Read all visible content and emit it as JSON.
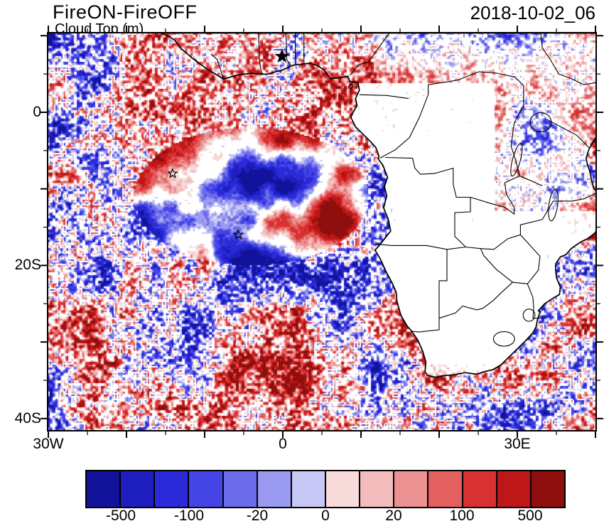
{
  "header": {
    "title": "FireON-FireOFF",
    "subtitle": "Cloud Top (m)",
    "timestamp": "2018-10-02_06"
  },
  "map": {
    "lon_range": [
      -30,
      40
    ],
    "lat_range": [
      -41.5,
      10.3
    ],
    "x_ticks": [
      {
        "lon": -30,
        "label": "30W"
      },
      {
        "lon": 0,
        "label": "0"
      },
      {
        "lon": 30,
        "label": "30E"
      }
    ],
    "y_ticks": [
      {
        "lat": 0,
        "label": "0"
      },
      {
        "lat": -20,
        "label": "20S"
      },
      {
        "lat": -40,
        "label": "40S"
      }
    ]
  },
  "colorbar": {
    "tick_labels": [
      "-500",
      "-100",
      "-20",
      "0",
      "20",
      "100",
      "500"
    ],
    "colors": [
      "#12129b",
      "#1f1fc0",
      "#2a2ad8",
      "#4545e6",
      "#6d6dec",
      "#9a9af1",
      "#c8c8f6",
      "#f7dada",
      "#f3bcbc",
      "#ec9292",
      "#e36060",
      "#d93131",
      "#bd1717",
      "#8f0f0f"
    ]
  },
  "chart_data": {
    "type": "heatmap",
    "title": "FireON-FireOFF",
    "subtitle": "Cloud Top (m)",
    "timestamp": "2018-10-02_06",
    "units": "m",
    "lon_range": [
      -30,
      40
    ],
    "lat_range": [
      -41.5,
      10.3
    ],
    "x_tick_labels": [
      "30W",
      "0",
      "30E"
    ],
    "y_tick_labels": [
      "0",
      "20S",
      "40S"
    ],
    "levels": [
      -500,
      -200,
      -100,
      -50,
      -20,
      -10,
      0,
      10,
      20,
      50,
      100,
      200,
      500
    ],
    "labeled_levels": [
      "-500",
      "-100",
      "-20",
      "0",
      "20",
      "100",
      "500"
    ],
    "palette": [
      "#12129b",
      "#1f1fc0",
      "#2a2ad8",
      "#4545e6",
      "#6d6dec",
      "#9a9af1",
      "#c8c8f6",
      "#f7dada",
      "#f3bcbc",
      "#ec9292",
      "#e36060",
      "#d93131",
      "#bd1717",
      "#8f0f0f"
    ],
    "zero_color": "#ffffff",
    "legend_position": "bottom",
    "grid": false,
    "description": "Speckled positive/negative cloud-top-height differences over the southeast Atlantic and surrounding oceans; smooth pale-blue/pale-pink patches with dark-red rims in the central stratocumulus region; mostly near-zero (white) over the southern-African land interior; coastlines and country borders drawn in black.",
    "markers": [
      {
        "symbol": "open-star",
        "lon": -14.1,
        "lat": -8.0
      },
      {
        "symbol": "open-star",
        "lon": -5.7,
        "lat": -16.0
      },
      {
        "symbol": "filled-star",
        "lon": -0.1,
        "lat": 7.3
      }
    ]
  }
}
